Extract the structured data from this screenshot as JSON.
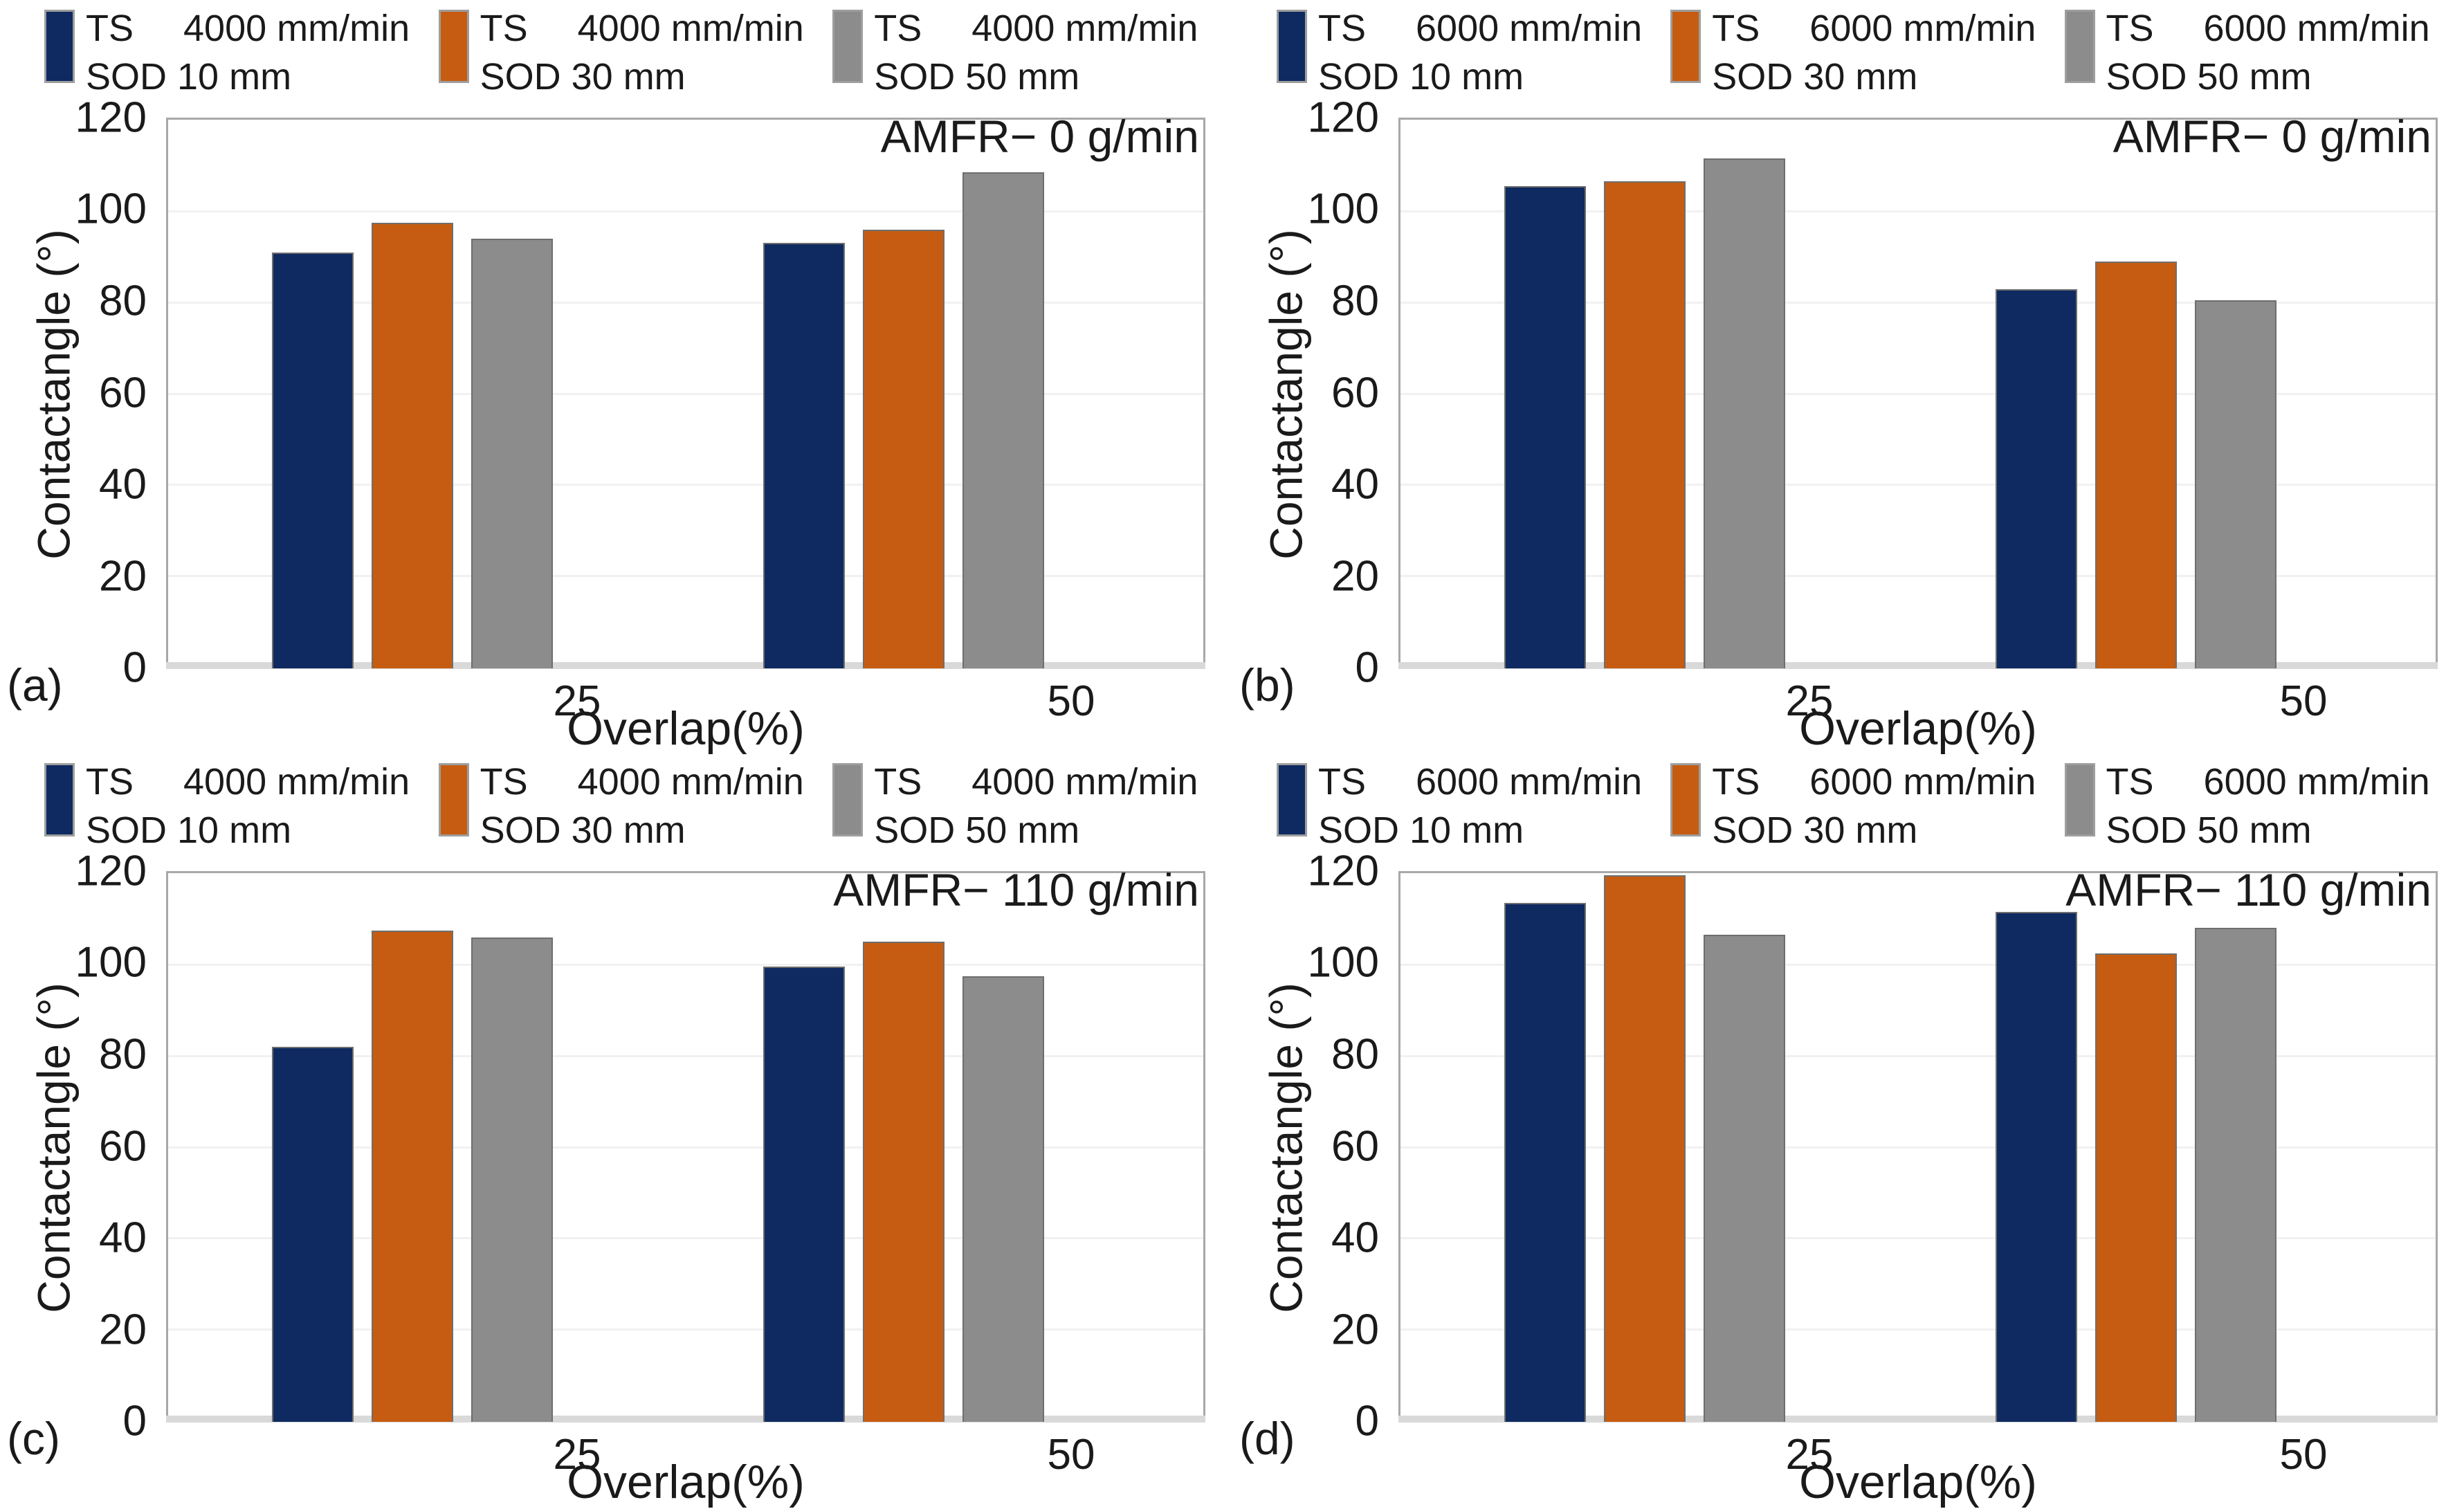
{
  "figure": {
    "description": "2x2 grouped bar charts of contact angle vs overlap",
    "text_color": "#1a1a1a",
    "plot_border_color": "#a8a8a8",
    "gridline_color": "#f1f1f1"
  },
  "chart_data": [
    {
      "type": "bar",
      "panel_label": "(a)",
      "annotation": "AMFR− 0 g/min",
      "xlabel": "Overlap(%)",
      "ylabel": "Contactangle (°)",
      "ylim": [
        0,
        120
      ],
      "yticks": [
        0,
        20,
        40,
        60,
        80,
        100,
        120
      ],
      "grid": "horizontal-light",
      "legend_position": "top",
      "categories": [
        "25",
        "50"
      ],
      "legend": [
        {
          "ts": "TS",
          "speed": "4000 mm/min",
          "sod": "SOD 10 mm"
        },
        {
          "ts": "TS",
          "speed": "4000 mm/min",
          "sod": "SOD 30 mm"
        },
        {
          "ts": "TS",
          "speed": "4000 mm/min",
          "sod": "SOD 50 mm"
        }
      ],
      "series": [
        {
          "name": "TS 4000 mm/min SOD 10 mm",
          "color": "#0e2a60",
          "values": [
            91,
            93
          ]
        },
        {
          "name": "TS 4000 mm/min SOD 30 mm",
          "color": "#c65c11",
          "values": [
            97.5,
            96
          ]
        },
        {
          "name": "TS 4000 mm/min SOD 50 mm",
          "color": "#8c8c8c",
          "values": [
            94,
            108.5
          ]
        }
      ]
    },
    {
      "type": "bar",
      "panel_label": "(b)",
      "annotation": "AMFR− 0 g/min",
      "xlabel": "Overlap(%)",
      "ylabel": "Contactangle (°)",
      "ylim": [
        0,
        120
      ],
      "yticks": [
        0,
        20,
        40,
        60,
        80,
        100,
        120
      ],
      "grid": "horizontal-light",
      "legend_position": "top",
      "categories": [
        "25",
        "50"
      ],
      "legend": [
        {
          "ts": "TS",
          "speed": "6000 mm/min",
          "sod": "SOD 10 mm"
        },
        {
          "ts": "TS",
          "speed": "6000 mm/min",
          "sod": "SOD 30 mm"
        },
        {
          "ts": "TS",
          "speed": "6000 mm/min",
          "sod": "SOD 50 mm"
        }
      ],
      "series": [
        {
          "name": "TS 6000 mm/min SOD 10 mm",
          "color": "#0e2a60",
          "values": [
            105.5,
            83
          ]
        },
        {
          "name": "TS 6000 mm/min SOD 30 mm",
          "color": "#c65c11",
          "values": [
            106.5,
            89
          ]
        },
        {
          "name": "TS 6000 mm/min SOD 50 mm",
          "color": "#8c8c8c",
          "values": [
            111.5,
            80.5
          ]
        }
      ]
    },
    {
      "type": "bar",
      "panel_label": "(c)",
      "annotation": "AMFR− 110 g/min",
      "xlabel": "Overlap(%)",
      "ylabel": "Contactangle (°)",
      "ylim": [
        0,
        120
      ],
      "yticks": [
        0,
        20,
        40,
        60,
        80,
        100,
        120
      ],
      "grid": "horizontal-light",
      "legend_position": "top",
      "categories": [
        "25",
        "50"
      ],
      "legend": [
        {
          "ts": "TS",
          "speed": "4000 mm/min",
          "sod": "SOD 10 mm"
        },
        {
          "ts": "TS",
          "speed": "4000 mm/min",
          "sod": "SOD 30 mm"
        },
        {
          "ts": "TS",
          "speed": "4000 mm/min",
          "sod": "SOD 50 mm"
        }
      ],
      "series": [
        {
          "name": "TS 4000 mm/min SOD 10 mm",
          "color": "#0e2a60",
          "values": [
            82,
            99.5
          ]
        },
        {
          "name": "TS 4000 mm/min SOD 30 mm",
          "color": "#c65c11",
          "values": [
            107.5,
            105
          ]
        },
        {
          "name": "TS 4000 mm/min SOD 50 mm",
          "color": "#8c8c8c",
          "values": [
            106,
            97.5
          ]
        }
      ]
    },
    {
      "type": "bar",
      "panel_label": "(d)",
      "annotation": "AMFR− 110 g/min",
      "xlabel": "Overlap(%)",
      "ylabel": "Contactangle (°)",
      "ylim": [
        0,
        120
      ],
      "yticks": [
        0,
        20,
        40,
        60,
        80,
        100,
        120
      ],
      "grid": "horizontal-light",
      "legend_position": "top",
      "categories": [
        "25",
        "50"
      ],
      "legend": [
        {
          "ts": "TS",
          "speed": "6000 mm/min",
          "sod": "SOD 10 mm"
        },
        {
          "ts": "TS",
          "speed": "6000 mm/min",
          "sod": "SOD 30 mm"
        },
        {
          "ts": "TS",
          "speed": "6000 mm/min",
          "sod": "SOD 50 mm"
        }
      ],
      "series": [
        {
          "name": "TS 6000 mm/min SOD 10 mm",
          "color": "#0e2a60",
          "values": [
            113.5,
            111.5
          ]
        },
        {
          "name": "TS 6000 mm/min SOD 30 mm",
          "color": "#c65c11",
          "values": [
            119.5,
            102.5
          ]
        },
        {
          "name": "TS 6000 mm/min SOD 50 mm",
          "color": "#8c8c8c",
          "values": [
            106.5,
            108
          ]
        }
      ]
    }
  ]
}
